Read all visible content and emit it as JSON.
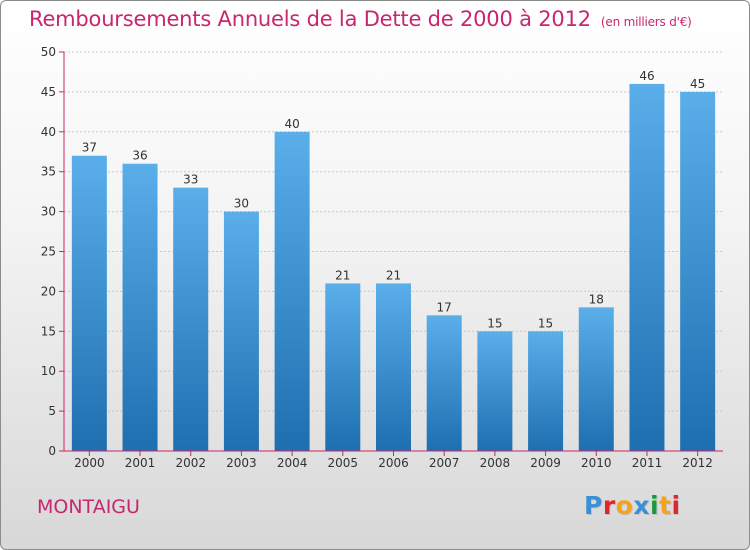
{
  "header": {
    "title": "Remboursements Annuels de la Dette de 2000 à 2012",
    "unit": "(en milliers d'€)"
  },
  "footer": {
    "city": "MONTAIGU",
    "brand": [
      "P",
      "r",
      "o",
      "x",
      "i",
      "t",
      "i"
    ]
  },
  "colors": {
    "title": "#c8266e",
    "bar_top": "#5aaeea",
    "bar_bottom": "#1e6fb0",
    "axis": "#c8266e",
    "grid": "#c8c8c8",
    "brand": [
      "#3a8fd6",
      "#e0262a",
      "#f6a21a",
      "#3a8fd6",
      "#1a9a3a",
      "#f6a21a",
      "#e0262a"
    ]
  },
  "chart_data": {
    "type": "bar",
    "categories": [
      "2000",
      "2001",
      "2002",
      "2003",
      "2004",
      "2005",
      "2006",
      "2007",
      "2008",
      "2009",
      "2010",
      "2011",
      "2012"
    ],
    "values": [
      37,
      36,
      33,
      30,
      40,
      21,
      21,
      17,
      15,
      15,
      18,
      46,
      45
    ],
    "value_labels": [
      "37",
      "36",
      "33",
      "30",
      "40",
      "21",
      "21",
      "17",
      "15",
      "15",
      "18",
      "46",
      "45"
    ],
    "yticks": [
      "0",
      "5",
      "10",
      "15",
      "20",
      "25",
      "30",
      "35",
      "40",
      "45",
      "50"
    ],
    "ylim": [
      0,
      50
    ],
    "grid": true
  }
}
